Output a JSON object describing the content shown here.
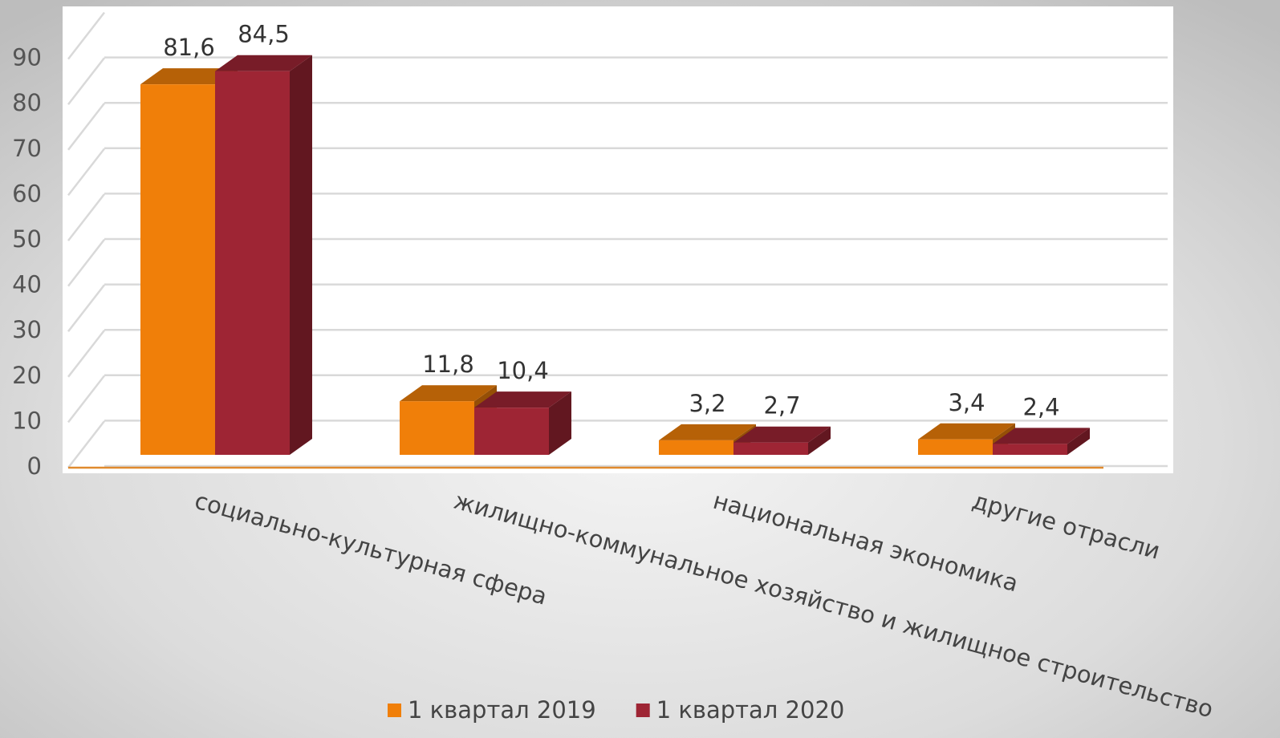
{
  "chart_data": {
    "type": "bar3d",
    "categories": [
      "социально-культурная сфера",
      "жилищно-коммунальное хозяйство и жилищное строительство",
      "национальная экономика",
      "другие отрасли"
    ],
    "series": [
      {
        "name": "1 квартал 2019",
        "color": "#f07f09",
        "values": [
          81.6,
          11.8,
          3.2,
          3.4
        ],
        "value_labels": [
          "81,6",
          "11,8",
          "3,2",
          "3,4"
        ]
      },
      {
        "name": "1 квартал 2020",
        "color": "#9e2534",
        "values": [
          84.5,
          10.4,
          2.7,
          2.4
        ],
        "value_labels": [
          "84,5",
          "10,4",
          "2,7",
          "2,4"
        ]
      }
    ],
    "ylim": [
      0,
      100
    ],
    "yticks": [
      0,
      10,
      20,
      30,
      40,
      50,
      60,
      70,
      80,
      90
    ],
    "grid": true,
    "legend": "bottom"
  }
}
